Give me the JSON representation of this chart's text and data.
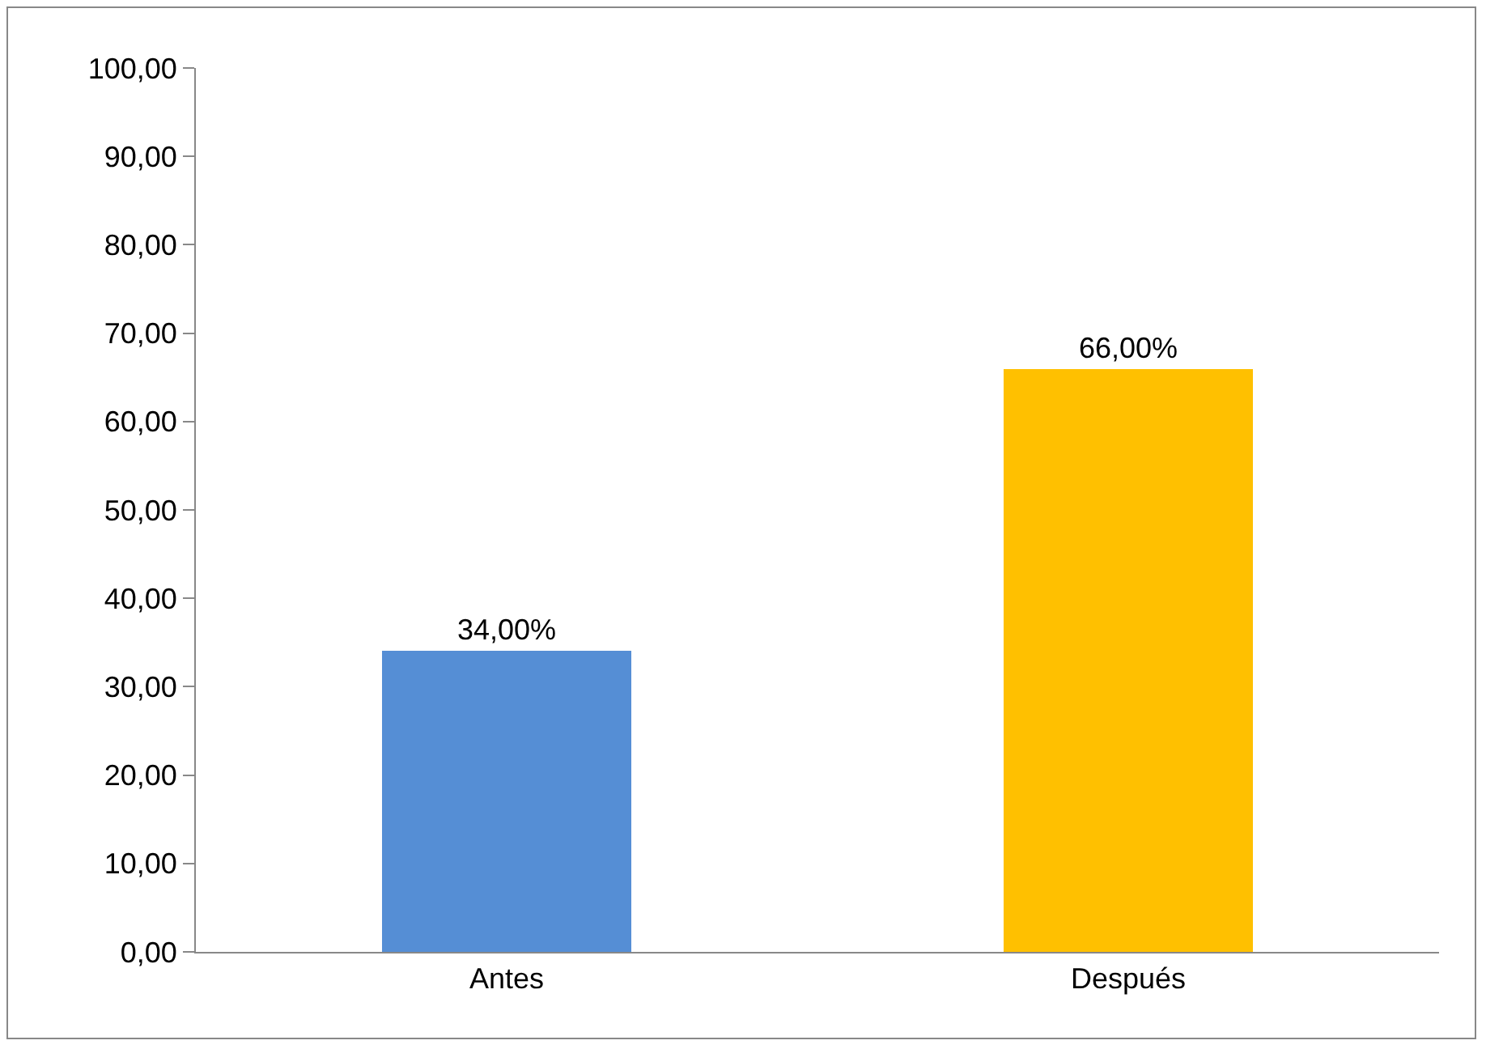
{
  "chart_data": {
    "type": "bar",
    "categories": [
      "Antes",
      "Después"
    ],
    "values": [
      34,
      66
    ],
    "colors": [
      "#558ed5",
      "#ffc000"
    ],
    "value_labels": [
      "34,00%",
      "66,00%"
    ],
    "ylim": [
      0,
      100
    ],
    "yticks": [
      {
        "value": 0,
        "label": "0,00"
      },
      {
        "value": 10,
        "label": "10,00"
      },
      {
        "value": 20,
        "label": "20,00"
      },
      {
        "value": 30,
        "label": "30,00"
      },
      {
        "value": 40,
        "label": "40,00"
      },
      {
        "value": 50,
        "label": "50,00"
      },
      {
        "value": 60,
        "label": "60,00"
      },
      {
        "value": 70,
        "label": "70,00"
      },
      {
        "value": 80,
        "label": "80,00"
      },
      {
        "value": 90,
        "label": "90,00"
      },
      {
        "value": 100,
        "label": "100,00"
      }
    ],
    "grid": false
  }
}
